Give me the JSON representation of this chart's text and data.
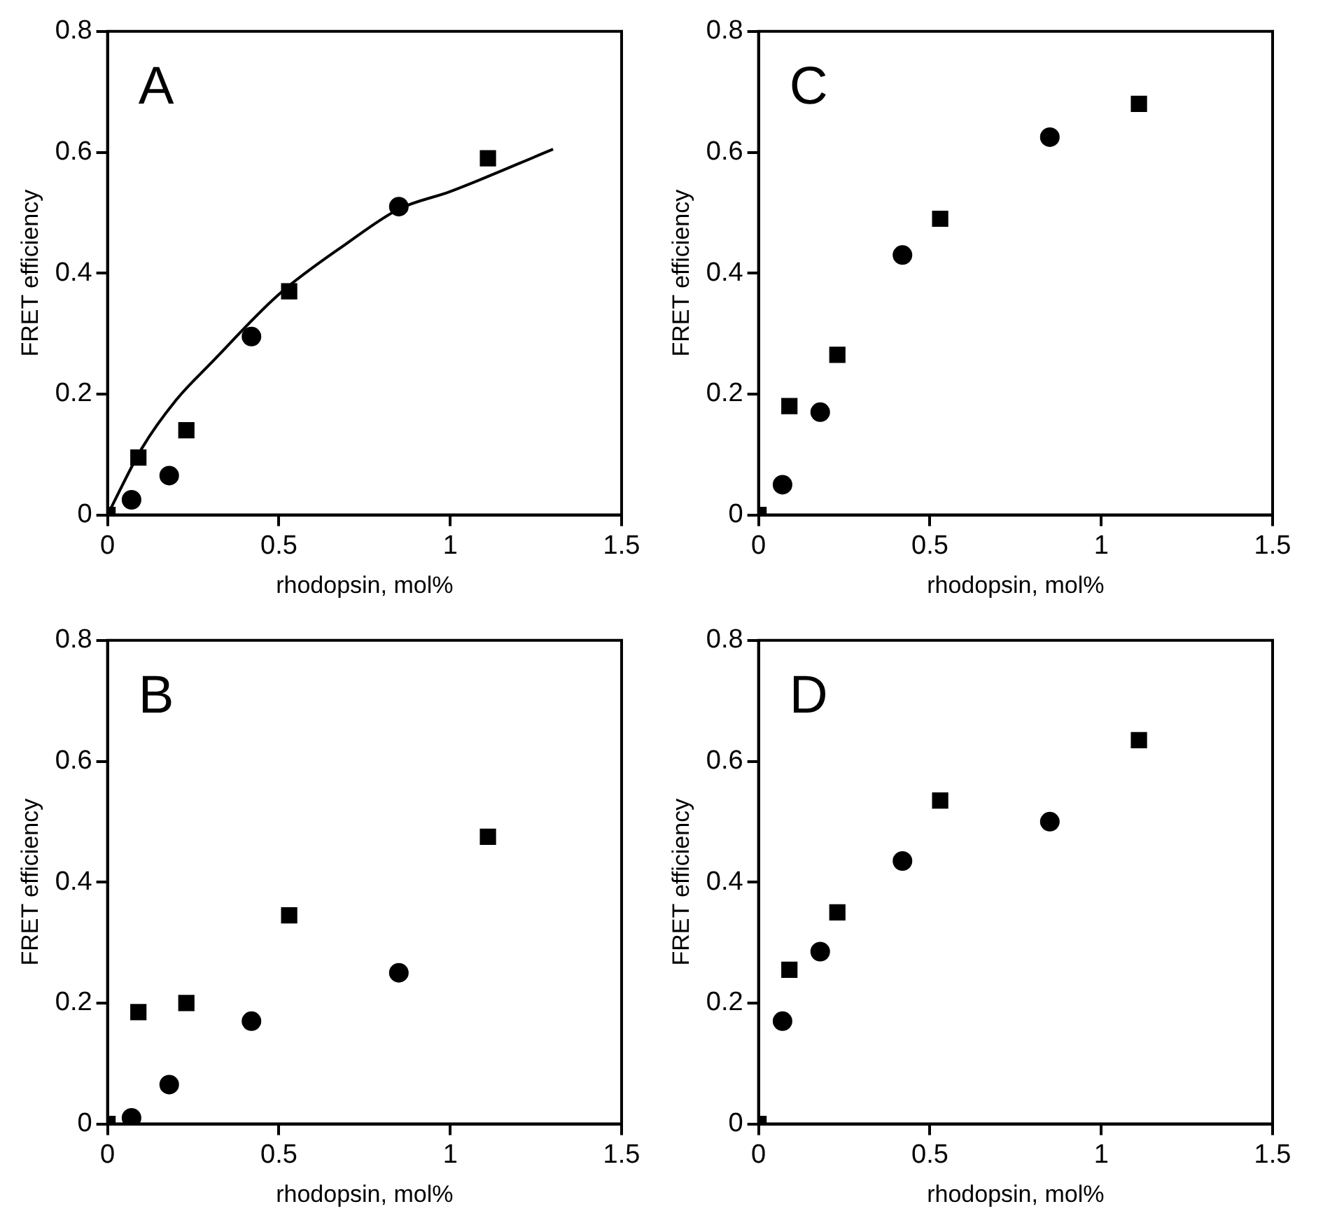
{
  "chart_data": [
    {
      "type": "scatter",
      "annotations": [
        "A"
      ],
      "xlabel": "rhodopsin, mol%",
      "ylabel": "FRET efficiency",
      "xlim": [
        0,
        1.5
      ],
      "xticks": [
        0,
        0.5,
        1,
        1.5
      ],
      "ylim": [
        0,
        0.8
      ],
      "yticks": [
        0,
        0.2,
        0.4,
        0.6,
        0.8
      ],
      "series": [
        {
          "color": "#000000",
          "marker": "square",
          "x": [
            0,
            0.09,
            0.23,
            0.53,
            1.11
          ],
          "values": [
            0,
            0.095,
            0.14,
            0.37,
            0.59
          ]
        },
        {
          "color": "#000000",
          "marker": "circle",
          "x": [
            0.07,
            0.18,
            0.42,
            0.85
          ],
          "values": [
            0.025,
            0.065,
            0.295,
            0.51
          ]
        },
        {
          "type": "line",
          "color": "#000000",
          "marker": "none",
          "x": [
            0,
            0.1,
            0.2,
            0.3,
            0.5,
            0.7,
            0.85,
            1.0,
            1.3
          ],
          "values": [
            0,
            0.11,
            0.19,
            0.25,
            0.365,
            0.45,
            0.506,
            0.535,
            0.605
          ]
        }
      ]
    },
    {
      "type": "scatter",
      "annotations": [
        "C"
      ],
      "xlabel": "rhodopsin, mol%",
      "ylabel": "FRET efficiency",
      "xlim": [
        0,
        1.5
      ],
      "xticks": [
        0,
        0.5,
        1,
        1.5
      ],
      "ylim": [
        0,
        0.8
      ],
      "yticks": [
        0,
        0.2,
        0.4,
        0.6,
        0.8
      ],
      "series": [
        {
          "color": "#000000",
          "marker": "square",
          "x": [
            0,
            0.09,
            0.23,
            0.53,
            1.11
          ],
          "values": [
            0,
            0.18,
            0.265,
            0.49,
            0.68
          ]
        },
        {
          "color": "#000000",
          "marker": "circle",
          "x": [
            0.07,
            0.18,
            0.42,
            0.85
          ],
          "values": [
            0.05,
            0.17,
            0.43,
            0.625
          ]
        }
      ]
    },
    {
      "type": "scatter",
      "annotations": [
        "B"
      ],
      "xlabel": "rhodopsin, mol%",
      "ylabel": "FRET efficiency",
      "xlim": [
        0,
        1.5
      ],
      "xticks": [
        0,
        0.5,
        1,
        1.5
      ],
      "ylim": [
        0,
        0.8
      ],
      "yticks": [
        0,
        0.2,
        0.4,
        0.6,
        0.8
      ],
      "series": [
        {
          "color": "#000000",
          "marker": "square",
          "x": [
            0,
            0.09,
            0.23,
            0.53,
            1.11
          ],
          "values": [
            0,
            0.185,
            0.2,
            0.345,
            0.475
          ]
        },
        {
          "color": "#000000",
          "marker": "circle",
          "x": [
            0.07,
            0.18,
            0.42,
            0.85
          ],
          "values": [
            0.01,
            0.065,
            0.17,
            0.25
          ]
        }
      ]
    },
    {
      "type": "scatter",
      "annotations": [
        "D"
      ],
      "xlabel": "rhodopsin, mol%",
      "ylabel": "FRET efficiency",
      "xlim": [
        0,
        1.5
      ],
      "xticks": [
        0,
        0.5,
        1,
        1.5
      ],
      "ylim": [
        0,
        0.8
      ],
      "yticks": [
        0,
        0.2,
        0.4,
        0.6,
        0.8
      ],
      "series": [
        {
          "color": "#000000",
          "marker": "square",
          "x": [
            0,
            0.09,
            0.23,
            0.53,
            1.11
          ],
          "values": [
            0,
            0.255,
            0.35,
            0.535,
            0.635
          ]
        },
        {
          "color": "#000000",
          "marker": "circle",
          "x": [
            0.07,
            0.18,
            0.42,
            0.85
          ],
          "values": [
            0.17,
            0.285,
            0.435,
            0.5
          ]
        }
      ]
    }
  ]
}
